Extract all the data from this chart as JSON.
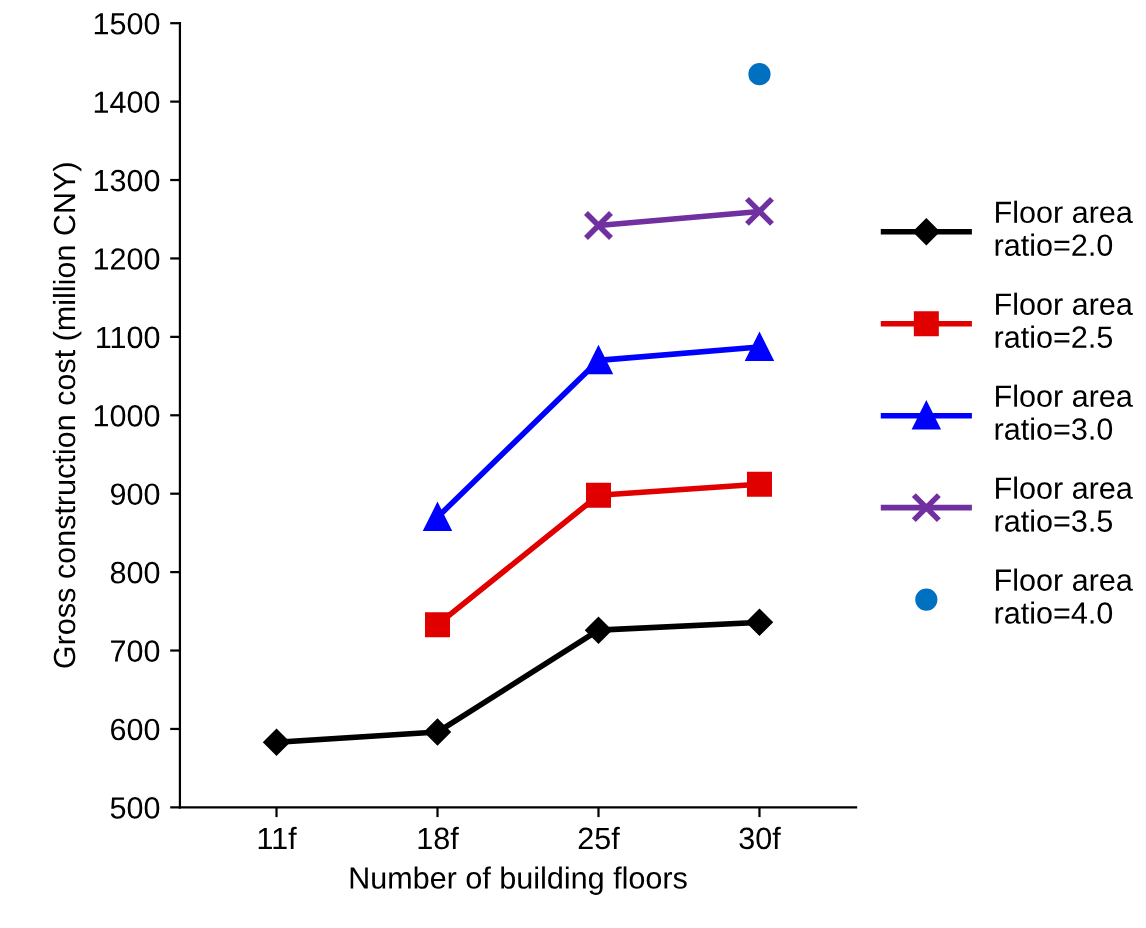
{
  "chart_data": {
    "type": "line",
    "xlabel": "Number of building floors",
    "ylabel": "Gross construction cost (million CNY)",
    "categories": [
      "11f",
      "18f",
      "25f",
      "30f"
    ],
    "ylim": [
      500,
      1500
    ],
    "yticks": [
      500,
      600,
      700,
      800,
      900,
      1000,
      1100,
      1200,
      1300,
      1400,
      1500
    ],
    "grid": false,
    "legend": "right",
    "series": [
      {
        "name": "Floor area\nratio=2.0",
        "color": "#000000",
        "marker": "diamond",
        "values": [
          583,
          596,
          726,
          736
        ]
      },
      {
        "name": "Floor area\nratio=2.5",
        "color": "#e00000",
        "marker": "square",
        "values": [
          null,
          733,
          898,
          912
        ]
      },
      {
        "name": "Floor area\nratio=3.0",
        "color": "#0000ff",
        "marker": "triangle",
        "values": [
          null,
          870,
          1070,
          1087
        ]
      },
      {
        "name": "Floor area\nratio=3.5",
        "color": "#7030a0",
        "marker": "cross",
        "values": [
          null,
          null,
          1242,
          1260
        ]
      },
      {
        "name": "Floor area\nratio=4.0",
        "color": "#0070c0",
        "marker": "circle",
        "type": "scatter",
        "values": [
          null,
          null,
          null,
          1435
        ]
      }
    ]
  }
}
